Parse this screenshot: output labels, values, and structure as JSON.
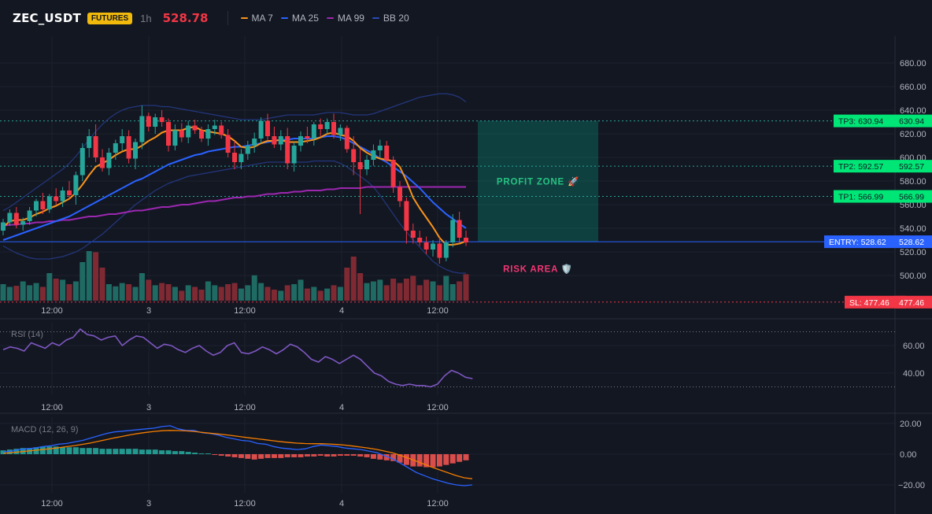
{
  "header": {
    "symbol": "ZEC_USDT",
    "badge": "FUTURES",
    "timeframe": "1h",
    "last_price": "528.78"
  },
  "legend": [
    {
      "label": "MA 7",
      "color": "#f7931a"
    },
    {
      "label": "MA 25",
      "color": "#2962ff"
    },
    {
      "label": "MA 99",
      "color": "#9c27b0"
    },
    {
      "label": "BB 20",
      "color": "#1e3a8a"
    }
  ],
  "colors": {
    "up": "#26a69a",
    "down": "#f23645",
    "vol_up": "#1f6b63",
    "vol_down": "#7f2a33",
    "macd_line": "#2962ff",
    "signal_line": "#f57c00",
    "rsi_line": "#7e57c2",
    "tp_label": "#00e676",
    "entry_label": "#2962ff",
    "sl_label": "#f23645"
  },
  "chart_data": [
    {
      "type": "candlestick",
      "title": "ZEC_USDT 1h",
      "x_tick_labels": [
        "12:00",
        "3",
        "12:00",
        "4",
        "12:00"
      ],
      "y_ticks": [
        "680.00",
        "660.00",
        "640.00",
        "620.00",
        "600.00",
        "580.00",
        "560.00",
        "540.00",
        "520.00",
        "500.00"
      ],
      "ylim": [
        480,
        690
      ],
      "grid": true,
      "candles": [
        [
          538,
          548,
          534,
          545
        ],
        [
          545,
          556,
          542,
          553
        ],
        [
          553,
          558,
          540,
          543
        ],
        [
          543,
          549,
          538,
          546
        ],
        [
          546,
          558,
          543,
          555
        ],
        [
          555,
          565,
          550,
          563
        ],
        [
          563,
          570,
          552,
          556
        ],
        [
          556,
          569,
          553,
          567
        ],
        [
          567,
          574,
          560,
          563
        ],
        [
          563,
          575,
          558,
          572
        ],
        [
          572,
          580,
          565,
          568
        ],
        [
          568,
          588,
          560,
          585
        ],
        [
          585,
          612,
          580,
          608
        ],
        [
          608,
          624,
          600,
          618
        ],
        [
          618,
          628,
          596,
          600
        ],
        [
          600,
          607,
          588,
          591
        ],
        [
          591,
          608,
          585,
          604
        ],
        [
          604,
          615,
          598,
          612
        ],
        [
          612,
          624,
          606,
          618
        ],
        [
          618,
          623,
          595,
          599
        ],
        [
          599,
          616,
          590,
          613
        ],
        [
          613,
          644,
          607,
          635
        ],
        [
          635,
          638,
          622,
          626
        ],
        [
          626,
          637,
          620,
          634
        ],
        [
          634,
          640,
          626,
          630
        ],
        [
          630,
          633,
          605,
          610
        ],
        [
          610,
          628,
          606,
          623
        ],
        [
          623,
          629,
          613,
          617
        ],
        [
          617,
          631,
          612,
          627
        ],
        [
          627,
          632,
          620,
          623
        ],
        [
          623,
          626,
          613,
          616
        ],
        [
          616,
          628,
          610,
          624
        ],
        [
          624,
          632,
          619,
          627
        ],
        [
          627,
          630,
          616,
          619
        ],
        [
          619,
          624,
          600,
          604
        ],
        [
          604,
          614,
          590,
          596
        ],
        [
          596,
          607,
          590,
          603
        ],
        [
          603,
          614,
          598,
          610
        ],
        [
          610,
          621,
          604,
          616
        ],
        [
          616,
          634,
          612,
          631
        ],
        [
          631,
          637,
          614,
          618
        ],
        [
          618,
          626,
          608,
          611
        ],
        [
          611,
          623,
          606,
          618
        ],
        [
          618,
          625,
          590,
          595
        ],
        [
          595,
          613,
          588,
          610
        ],
        [
          610,
          622,
          605,
          618
        ],
        [
          618,
          626,
          612,
          616
        ],
        [
          616,
          630,
          610,
          628
        ],
        [
          628,
          633,
          618,
          624
        ],
        [
          624,
          633,
          620,
          630
        ],
        [
          630,
          637,
          616,
          619
        ],
        [
          619,
          628,
          614,
          625
        ],
        [
          625,
          627,
          604,
          607
        ],
        [
          607,
          618,
          585,
          596
        ],
        [
          596,
          607,
          552,
          590
        ],
        [
          590,
          602,
          585,
          598
        ],
        [
          598,
          611,
          593,
          606
        ],
        [
          606,
          615,
          600,
          610
        ],
        [
          610,
          614,
          596,
          598
        ],
        [
          598,
          601,
          570,
          575
        ],
        [
          575,
          580,
          558,
          563
        ],
        [
          563,
          566,
          527,
          538
        ],
        [
          538,
          544,
          527,
          532
        ],
        [
          532,
          538,
          525,
          528
        ],
        [
          528,
          533,
          518,
          522
        ],
        [
          522,
          530,
          516,
          527
        ],
        [
          527,
          532,
          510,
          515
        ],
        [
          515,
          530,
          512,
          528
        ],
        [
          528,
          552,
          524,
          547
        ],
        [
          547,
          554,
          528,
          532
        ],
        [
          532,
          538,
          525,
          528
        ]
      ],
      "volume": [
        30,
        25,
        27,
        35,
        28,
        32,
        25,
        50,
        40,
        38,
        30,
        35,
        70,
        90,
        88,
        60,
        30,
        26,
        32,
        30,
        25,
        50,
        38,
        28,
        32,
        30,
        25,
        18,
        28,
        25,
        20,
        35,
        28,
        25,
        30,
        32,
        22,
        28,
        46,
        32,
        25,
        20,
        18,
        28,
        30,
        38,
        22,
        25,
        18,
        22,
        28,
        25,
        60,
        80,
        50,
        32,
        35,
        38,
        28,
        40,
        32,
        40,
        45,
        28,
        38,
        35,
        28,
        45,
        30,
        35,
        48
      ],
      "ma7": [
        541,
        546,
        547,
        547,
        549,
        552,
        554,
        557,
        559,
        562,
        565,
        570,
        577,
        585,
        592,
        595,
        598,
        602,
        605,
        607,
        607,
        610,
        614,
        617,
        621,
        623,
        623,
        623,
        625,
        626,
        623,
        622,
        621,
        620,
        618,
        614,
        609,
        608,
        609,
        612,
        614,
        614,
        615,
        613,
        613,
        613,
        614,
        615,
        617,
        620,
        621,
        619,
        618,
        614,
        608,
        604,
        601,
        599,
        598,
        597,
        592,
        580,
        566,
        557,
        549,
        541,
        532,
        526,
        526,
        527,
        529
      ],
      "ma25": [
        530,
        532,
        534,
        536,
        538,
        540,
        542,
        544,
        546,
        548,
        550,
        553,
        556,
        559,
        562,
        565,
        568,
        571,
        574,
        577,
        580,
        582,
        585,
        588,
        591,
        594,
        596,
        598,
        600,
        602,
        603,
        605,
        606,
        607,
        608,
        609,
        609,
        610,
        611,
        612,
        613,
        614,
        615,
        615,
        616,
        616,
        616,
        616,
        617,
        618,
        618,
        617,
        615,
        612,
        609,
        606,
        603,
        599,
        596,
        592,
        588,
        584,
        579,
        574,
        568,
        562,
        557,
        552,
        548,
        544,
        540
      ],
      "ma99": [
        542,
        543,
        543,
        544,
        544,
        545,
        545,
        546,
        546,
        547,
        547,
        548,
        549,
        550,
        550,
        551,
        552,
        552,
        553,
        554,
        555,
        555,
        556,
        557,
        558,
        558,
        559,
        560,
        560,
        561,
        562,
        563,
        563,
        564,
        565,
        566,
        566,
        567,
        567,
        568,
        569,
        569,
        570,
        570,
        571,
        571,
        572,
        572,
        572,
        573,
        573,
        574,
        574,
        574,
        574,
        575,
        575,
        575,
        575,
        575,
        575,
        575,
        575,
        575,
        575,
        575,
        575,
        575,
        575,
        575,
        575
      ],
      "bb_upper": [
        555,
        558,
        562,
        566,
        570,
        574,
        578,
        582,
        586,
        590,
        595,
        601,
        608,
        615,
        622,
        628,
        633,
        637,
        640,
        642,
        643,
        644,
        644,
        644,
        643,
        643,
        642,
        641,
        640,
        639,
        638,
        637,
        636,
        635,
        634,
        633,
        632,
        632,
        632,
        632,
        633,
        634,
        635,
        636,
        636,
        636,
        636,
        636,
        637,
        638,
        638,
        638,
        637,
        636,
        636,
        636,
        637,
        639,
        641,
        643,
        645,
        647,
        649,
        651,
        652,
        653,
        654,
        654,
        653,
        651,
        647
      ],
      "bb_lower": [
        525,
        522,
        519,
        517,
        515,
        514,
        514,
        514,
        515,
        516,
        518,
        520,
        523,
        527,
        531,
        535,
        540,
        545,
        550,
        555,
        560,
        564,
        568,
        572,
        575,
        578,
        580,
        582,
        584,
        585,
        586,
        587,
        588,
        589,
        590,
        591,
        592,
        593,
        594,
        595,
        596,
        596,
        596,
        596,
        596,
        596,
        596,
        597,
        597,
        597,
        597,
        595,
        592,
        588,
        584,
        580,
        575,
        568,
        560,
        552,
        544,
        537,
        530,
        524,
        518,
        512,
        508,
        505,
        503,
        502,
        502
      ],
      "levels": [
        {
          "name": "TP3",
          "price": 630.94,
          "label": "TP3: 630.94",
          "axis": "630.94",
          "style": "dotted"
        },
        {
          "name": "TP2",
          "price": 592.57,
          "label": "TP2: 592.57",
          "axis": "592.57",
          "style": "dotted"
        },
        {
          "name": "TP1",
          "price": 566.99,
          "label": "TP1: 566.99",
          "axis": "566.99",
          "style": "dotted"
        },
        {
          "name": "ENTRY",
          "price": 528.62,
          "label": "ENTRY: 528.62",
          "axis": "528.62",
          "style": "solid"
        },
        {
          "name": "SL",
          "price": 477.46,
          "label": "SL: 477.46",
          "axis": "477.46",
          "style": "dotted"
        }
      ],
      "zones": [
        {
          "label": "PROFIT ZONE 🚀",
          "from": 528.62,
          "to": 630.94,
          "color": "#089981"
        },
        {
          "label": "RISK AREA 🛡️",
          "from": 477.46,
          "to": 528.62,
          "color": "#f23645"
        }
      ]
    },
    {
      "type": "line",
      "title": "RSI (14)",
      "x_tick_labels": [
        "12:00",
        "3",
        "12:00",
        "4",
        "12:00"
      ],
      "y_ticks": [
        "60.00",
        "40.00"
      ],
      "ylim": [
        20,
        80
      ],
      "bands": [
        70,
        30
      ],
      "values": [
        57,
        59,
        58,
        56,
        62,
        60,
        58,
        62,
        60,
        64,
        66,
        72,
        68,
        67,
        64,
        66,
        67,
        60,
        64,
        67,
        66,
        62,
        58,
        61,
        60,
        57,
        55,
        58,
        60,
        56,
        53,
        55,
        60,
        62,
        55,
        54,
        56,
        59,
        57,
        54,
        57,
        61,
        59,
        55,
        50,
        48,
        52,
        50,
        47,
        50,
        53,
        50,
        45,
        40,
        38,
        34,
        32,
        31,
        32,
        31,
        31,
        30,
        32,
        38,
        42,
        40,
        37,
        36
      ]
    },
    {
      "type": "line",
      "title": "MACD (12, 26, 9)",
      "x_tick_labels": [
        "12:00",
        "3",
        "12:00",
        "4",
        "12:00"
      ],
      "y_ticks": [
        "20.00",
        "0.00",
        "−20.00"
      ],
      "ylim": [
        -26,
        24
      ],
      "macd": [
        1.5,
        2.0,
        3.0,
        3.5,
        4.0,
        5.0,
        5.5,
        6.5,
        7.0,
        8.0,
        9.0,
        10.5,
        12.0,
        13.5,
        14.5,
        15.0,
        15.5,
        16.0,
        16.5,
        17.0,
        18.0,
        18.5,
        16.5,
        15.5,
        15.5,
        14.0,
        13.5,
        12.5,
        11.0,
        10.0,
        9.0,
        8.5,
        7.0,
        6.5,
        5.0,
        4.0,
        3.5,
        3.0,
        3.5,
        5.0,
        6.0,
        5.5,
        5.0,
        4.0,
        3.5,
        3.0,
        2.0,
        1.0,
        -1.0,
        -3.0,
        -6.0,
        -9.0,
        -12.0,
        -14.0,
        -16.0,
        -17.5,
        -19.0,
        -20.0,
        -20.5,
        -20.0
      ],
      "signal": [
        0.5,
        1.0,
        1.5,
        2.0,
        2.5,
        3.0,
        3.6,
        4.2,
        4.9,
        5.6,
        6.4,
        7.3,
        8.4,
        9.5,
        10.6,
        11.6,
        12.6,
        13.5,
        14.2,
        14.8,
        15.3,
        15.5,
        15.4,
        15.2,
        14.8,
        14.2,
        13.7,
        13.2,
        12.6,
        12.0,
        11.3,
        10.6,
        10.0,
        9.4,
        8.7,
        8.1,
        7.6,
        7.2,
        6.9,
        6.8,
        6.8,
        6.6,
        6.3,
        5.9,
        5.3,
        4.6,
        3.9,
        3.1,
        2.0,
        0.8,
        -0.8,
        -2.6,
        -4.6,
        -6.6,
        -8.6,
        -10.4,
        -12.2,
        -14.0,
        -15.4,
        -16.0
      ],
      "histogram": [
        2.5,
        3.0,
        3.5,
        4.0,
        4.0,
        4.5,
        5.0,
        5.0,
        5.0,
        4.5,
        4.5,
        4.5,
        4.0,
        4.0,
        4.0,
        3.5,
        3.5,
        3.5,
        3.5,
        3.5,
        3.5,
        3.0,
        3.0,
        3.0,
        2.5,
        2.5,
        2.0,
        2.0,
        1.5,
        1.0,
        0.5,
        0.5,
        -0.5,
        -1.0,
        -1.5,
        -2.0,
        -2.5,
        -3.0,
        -3.5,
        -3.0,
        -2.5,
        -2.5,
        -2.5,
        -2.0,
        -2.0,
        -2.0,
        -1.5,
        -1.5,
        -1.0,
        -1.5,
        -1.5,
        -1.0,
        -1.0,
        -1.0,
        -1.5,
        -2.0,
        -3.0,
        -3.5,
        -4.0,
        -4.5,
        -5.5,
        -7.0,
        -8.0,
        -8.0,
        -8.5,
        -8.5,
        -8.0,
        -7.0,
        -6.0,
        -5.0,
        -4.0
      ]
    }
  ]
}
